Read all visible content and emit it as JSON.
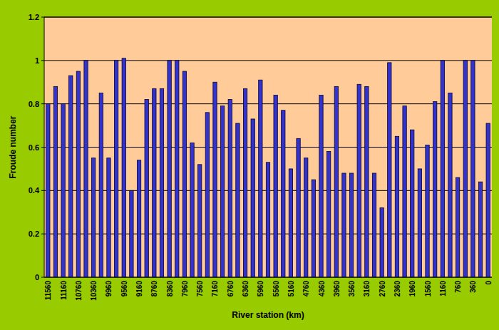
{
  "chart_data": {
    "type": "bar",
    "x_label": "River station (km)",
    "y_label": "Froude number",
    "categories": [
      "11560",
      null,
      "11160",
      null,
      "10760",
      null,
      "10360",
      null,
      "9960",
      null,
      "9560",
      null,
      "9160",
      null,
      "8760",
      null,
      "8360",
      null,
      "7960",
      null,
      "7560",
      null,
      "7160",
      null,
      "6760",
      null,
      "6360",
      null,
      "5960",
      null,
      "5560",
      null,
      "5160",
      null,
      "4760",
      null,
      "4360",
      null,
      "3960",
      null,
      "3560",
      null,
      "3160",
      null,
      "2760",
      null,
      "2360",
      null,
      "1960",
      null,
      "1560",
      null,
      "1160",
      null,
      "760",
      null,
      "360",
      null,
      "0"
    ],
    "values": [
      0.8,
      0.88,
      0.8,
      0.93,
      0.95,
      1.0,
      0.55,
      0.85,
      0.55,
      1.0,
      1.01,
      0.4,
      0.54,
      0.82,
      0.87,
      0.87,
      1.0,
      1.0,
      0.95,
      0.62,
      0.52,
      0.76,
      0.9,
      0.79,
      0.82,
      0.71,
      0.87,
      0.73,
      0.91,
      0.53,
      0.84,
      0.77,
      0.5,
      0.64,
      0.55,
      0.45,
      0.84,
      0.58,
      0.88,
      0.48,
      0.48,
      0.89,
      0.88,
      0.48,
      0.32,
      0.99,
      0.65,
      0.79,
      0.68,
      0.5,
      0.61,
      0.81,
      1.0,
      0.85,
      0.46,
      1.0,
      1.0,
      0.44,
      0.71
    ],
    "color": "#3333cc",
    "ylim": [
      0,
      1.2
    ],
    "yticks": [
      0,
      0.2,
      0.4,
      0.6,
      0.8,
      1,
      1.2
    ],
    "grid": true
  }
}
